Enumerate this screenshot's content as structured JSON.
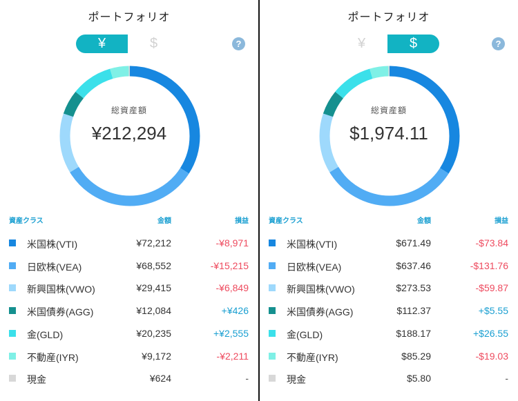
{
  "colors": {
    "accent": "#12b3c3",
    "header": "#1a9fd1",
    "negative": "#ee4a5e",
    "positive": "#1a9fd1",
    "help": "#8bb8db"
  },
  "help_icon": "question-icon",
  "categories": [
    {
      "name": "米国株(VTI)",
      "color": "#1787e0"
    },
    {
      "name": "日欧株(VEA)",
      "color": "#51acf4"
    },
    {
      "name": "新興国株(VWO)",
      "color": "#9ed9fc"
    },
    {
      "name": "米国債券(AGG)",
      "color": "#15908f"
    },
    {
      "name": "金(GLD)",
      "color": "#3be0ea"
    },
    {
      "name": "不動産(IYR)",
      "color": "#7ff0e6"
    },
    {
      "name": "現金",
      "color": "#d8d8d8"
    }
  ],
  "panels": [
    {
      "title": "ポートフォリオ",
      "toggle": {
        "yen": "¥",
        "usd": "$",
        "active": "yen"
      },
      "help": "?",
      "total_label": "総資産額",
      "total_value": "¥212,294",
      "header": {
        "class": "資産クラス",
        "amount": "金額",
        "gain": "損益"
      },
      "rows": [
        {
          "name": "米国株(VTI)",
          "amount": "¥72,212",
          "gain": "-¥8,971",
          "sign": "neg"
        },
        {
          "name": "日欧株(VEA)",
          "amount": "¥68,552",
          "gain": "-¥15,215",
          "sign": "neg"
        },
        {
          "name": "新興国株(VWO)",
          "amount": "¥29,415",
          "gain": "-¥6,849",
          "sign": "neg"
        },
        {
          "name": "米国債券(AGG)",
          "amount": "¥12,084",
          "gain": "+¥426",
          "sign": "pos"
        },
        {
          "name": "金(GLD)",
          "amount": "¥20,235",
          "gain": "+¥2,555",
          "sign": "pos"
        },
        {
          "name": "不動産(IYR)",
          "amount": "¥9,172",
          "gain": "-¥2,211",
          "sign": "neg"
        },
        {
          "name": "現金",
          "amount": "¥624",
          "gain": "-",
          "sign": "neutral"
        }
      ]
    },
    {
      "title": "ポートフォリオ",
      "toggle": {
        "yen": "¥",
        "usd": "$",
        "active": "usd"
      },
      "help": "?",
      "total_label": "総資産額",
      "total_value": "$1,974.11",
      "header": {
        "class": "資産クラス",
        "amount": "金額",
        "gain": "損益"
      },
      "rows": [
        {
          "name": "米国株(VTI)",
          "amount": "$671.49",
          "gain": "-$73.84",
          "sign": "neg"
        },
        {
          "name": "日欧株(VEA)",
          "amount": "$637.46",
          "gain": "-$131.76",
          "sign": "neg"
        },
        {
          "name": "新興国株(VWO)",
          "amount": "$273.53",
          "gain": "-$59.87",
          "sign": "neg"
        },
        {
          "name": "米国債券(AGG)",
          "amount": "$112.37",
          "gain": "+$5.55",
          "sign": "pos"
        },
        {
          "name": "金(GLD)",
          "amount": "$188.17",
          "gain": "+$26.55",
          "sign": "pos"
        },
        {
          "name": "不動産(IYR)",
          "amount": "$85.29",
          "gain": "-$19.03",
          "sign": "neg"
        },
        {
          "name": "現金",
          "amount": "$5.80",
          "gain": "-",
          "sign": "neutral"
        }
      ]
    }
  ],
  "chart_data": [
    {
      "type": "pie",
      "categories": [
        "米国株(VTI)",
        "日欧株(VEA)",
        "新興国株(VWO)",
        "米国債券(AGG)",
        "金(GLD)",
        "不動産(IYR)",
        "現金"
      ],
      "values": [
        72212,
        68552,
        29415,
        12084,
        20235,
        9172,
        624
      ]
    },
    {
      "type": "pie",
      "categories": [
        "米国株(VTI)",
        "日欧株(VEA)",
        "新興国株(VWO)",
        "米国債券(AGG)",
        "金(GLD)",
        "不動産(IYR)",
        "現金"
      ],
      "values": [
        671.49,
        637.46,
        273.53,
        112.37,
        188.17,
        85.29,
        5.8
      ]
    }
  ]
}
